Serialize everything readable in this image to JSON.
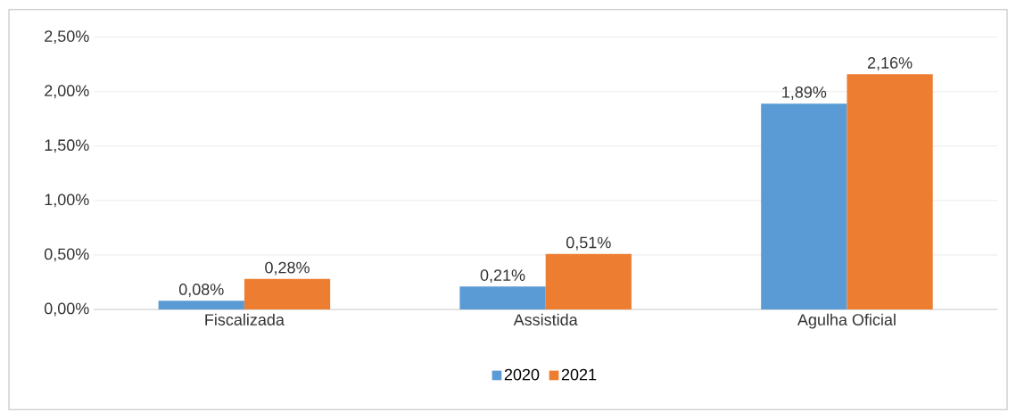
{
  "chart_data": {
    "type": "bar",
    "categories": [
      "Fiscalizada",
      "Assistida",
      "Agulha Oficial"
    ],
    "series": [
      {
        "name": "2020",
        "color": "#5b9bd5",
        "values": [
          0.08,
          0.21,
          1.89
        ],
        "value_labels": [
          "0,08%",
          "0,21%",
          "1,89%"
        ]
      },
      {
        "name": "2021",
        "color": "#ed7d31",
        "values": [
          0.28,
          0.51,
          2.16
        ],
        "value_labels": [
          "0,28%",
          "0,51%",
          "2,16%"
        ]
      }
    ],
    "ylim": [
      0,
      2.5
    ],
    "yticks": [
      {
        "value": 0,
        "label": "0,00%"
      },
      {
        "value": 0.5,
        "label": "0,50%"
      },
      {
        "value": 1,
        "label": "1,00%"
      },
      {
        "value": 1.5,
        "label": "1,50%"
      },
      {
        "value": 2,
        "label": "2,00%"
      },
      {
        "value": 2.5,
        "label": "2,50%"
      }
    ],
    "grid": "y",
    "legend": "bottom"
  }
}
